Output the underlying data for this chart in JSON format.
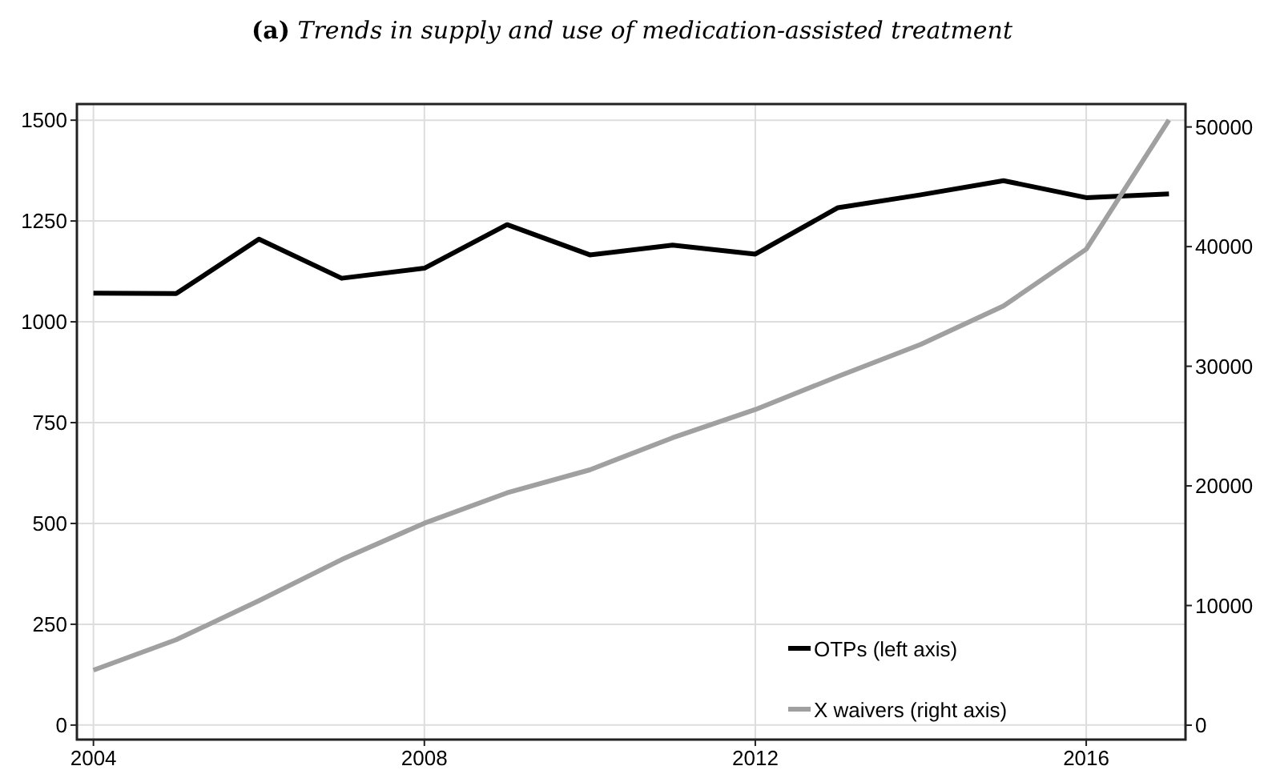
{
  "chart_data": {
    "type": "line",
    "title": "(a) Trends in supply and use of medication-assisted treatment",
    "x": [
      2004,
      2005,
      2006,
      2007,
      2008,
      2009,
      2010,
      2011,
      2012,
      2013,
      2014,
      2015,
      2016,
      2017
    ],
    "series": [
      {
        "name": "OTPs (left axis)",
        "color": "#000000",
        "values": [
          1071,
          1070,
          1205,
          1108,
          1133,
          1241,
          1166,
          1190,
          1168,
          1283,
          1315,
          1350,
          1308,
          1317
        ]
      },
      {
        "name": "X waivers (right axis)",
        "color": "#a0a0a0",
        "axis": "y2",
        "values": [
          4600,
          7140,
          10400,
          13840,
          16880,
          19420,
          21340,
          24020,
          26380,
          29150,
          31830,
          35040,
          39780,
          50580
        ]
      }
    ],
    "xlim": [
      2003.8,
      2017.2
    ],
    "xticks": [
      2004,
      2008,
      2012,
      2016
    ],
    "ylim": [
      -36,
      1540
    ],
    "yticks": [
      0,
      250,
      500,
      750,
      1000,
      1250,
      1500
    ],
    "y2lim": [
      -1205,
      51915
    ],
    "y2ticks": [
      0,
      10000,
      20000,
      30000,
      40000,
      50000
    ],
    "grid": true,
    "legend": "bottom right",
    "marker": "none",
    "line_style": "solid"
  }
}
